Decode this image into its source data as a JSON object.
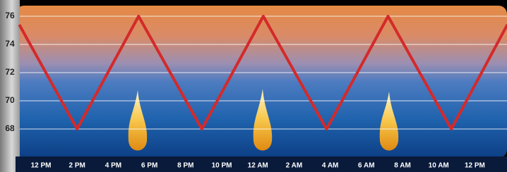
{
  "chart_data": {
    "type": "line",
    "x": [
      -1.2,
      2,
      5.4,
      8.9,
      12.3,
      15.8,
      19.2,
      22.7,
      25.8
    ],
    "series": [
      {
        "color": "#d42a2a",
        "values": [
          75.4,
          68,
          76,
          68,
          76,
          68,
          76,
          68,
          75.4
        ]
      }
    ],
    "xlim": [
      -1.2,
      25.8
    ],
    "xticks": [
      {
        "value": 0,
        "label": "12 PM"
      },
      {
        "value": 2,
        "label": "2 PM"
      },
      {
        "value": 4,
        "label": "4 PM"
      },
      {
        "value": 6,
        "label": "6 PM"
      },
      {
        "value": 8,
        "label": "8 PM"
      },
      {
        "value": 10,
        "label": "10 PM"
      },
      {
        "value": 12,
        "label": "12 AM"
      },
      {
        "value": 14,
        "label": "2 AM"
      },
      {
        "value": 16,
        "label": "4 AM"
      },
      {
        "value": 18,
        "label": "6 AM"
      },
      {
        "value": 20,
        "label": "8 AM"
      },
      {
        "value": 22,
        "label": "10 AM"
      },
      {
        "value": 24,
        "label": "12 PM"
      }
    ],
    "ylim": [
      66,
      77
    ],
    "yticks": [
      68,
      70,
      72,
      74,
      76
    ],
    "grid": true
  }
}
